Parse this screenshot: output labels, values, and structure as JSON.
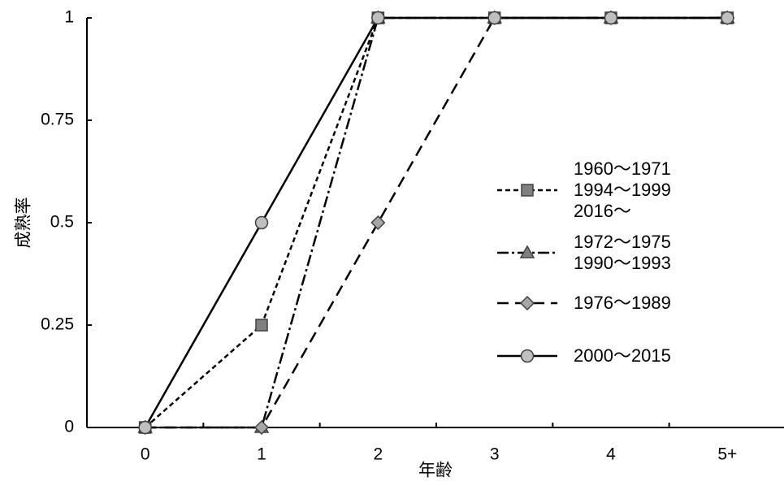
{
  "chart_data": {
    "type": "line",
    "x_label": "年齢",
    "y_label": "成熟率",
    "categories": [
      "0",
      "1",
      "2",
      "3",
      "4",
      "5+"
    ],
    "ylim": [
      0,
      1
    ],
    "yticks": [
      0,
      0.25,
      0.5,
      0.75,
      1
    ],
    "series": [
      {
        "name": "1960～1971\n1994～1999\n2016～",
        "color": "#808080",
        "marker": "square",
        "dash": "6,4",
        "values": [
          0,
          0.25,
          1,
          1,
          1,
          1
        ]
      },
      {
        "name": "1972～1975\n1990～1993",
        "color": "#808080",
        "marker": "triangle",
        "dash": "14,4,3,4",
        "values": [
          0,
          0,
          1,
          1,
          1,
          1
        ]
      },
      {
        "name": "1976～1989",
        "color": "#a6a6a6",
        "marker": "diamond",
        "dash": "14,8",
        "values": [
          0,
          0,
          0.5,
          1,
          1,
          1
        ]
      },
      {
        "name": "2000～2015",
        "color": "#bfbfbf",
        "marker": "circle",
        "dash": "none",
        "values": [
          0,
          0.5,
          1,
          1,
          1,
          1
        ]
      }
    ]
  }
}
